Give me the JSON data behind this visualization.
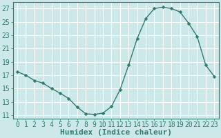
{
  "x": [
    0,
    1,
    2,
    3,
    4,
    5,
    6,
    7,
    8,
    9,
    10,
    11,
    12,
    13,
    14,
    15,
    16,
    17,
    18,
    19,
    20,
    21,
    22,
    23
  ],
  "y": [
    17.5,
    17.0,
    16.2,
    15.8,
    15.0,
    14.3,
    13.5,
    12.2,
    11.2,
    11.1,
    11.3,
    12.3,
    14.8,
    18.5,
    22.5,
    25.5,
    27.0,
    27.2,
    27.0,
    26.5,
    24.8,
    22.8,
    18.5,
    16.8
  ],
  "line_color": "#2e7d6e",
  "marker": "D",
  "marker_size": 2.5,
  "bg_color": "#cce8e8",
  "grid_color": "#b8d8d8",
  "xlabel": "Humidex (Indice chaleur)",
  "xlim": [
    -0.5,
    23.5
  ],
  "ylim": [
    10.5,
    28
  ],
  "yticks": [
    11,
    13,
    15,
    17,
    19,
    21,
    23,
    25,
    27
  ],
  "xticks": [
    0,
    1,
    2,
    3,
    4,
    5,
    6,
    7,
    8,
    9,
    10,
    11,
    12,
    13,
    14,
    15,
    16,
    17,
    18,
    19,
    20,
    21,
    22,
    23
  ],
  "axis_color": "#2e7d6e",
  "tick_color": "#2e7d6e",
  "label_fontsize": 8,
  "tick_fontsize": 7
}
